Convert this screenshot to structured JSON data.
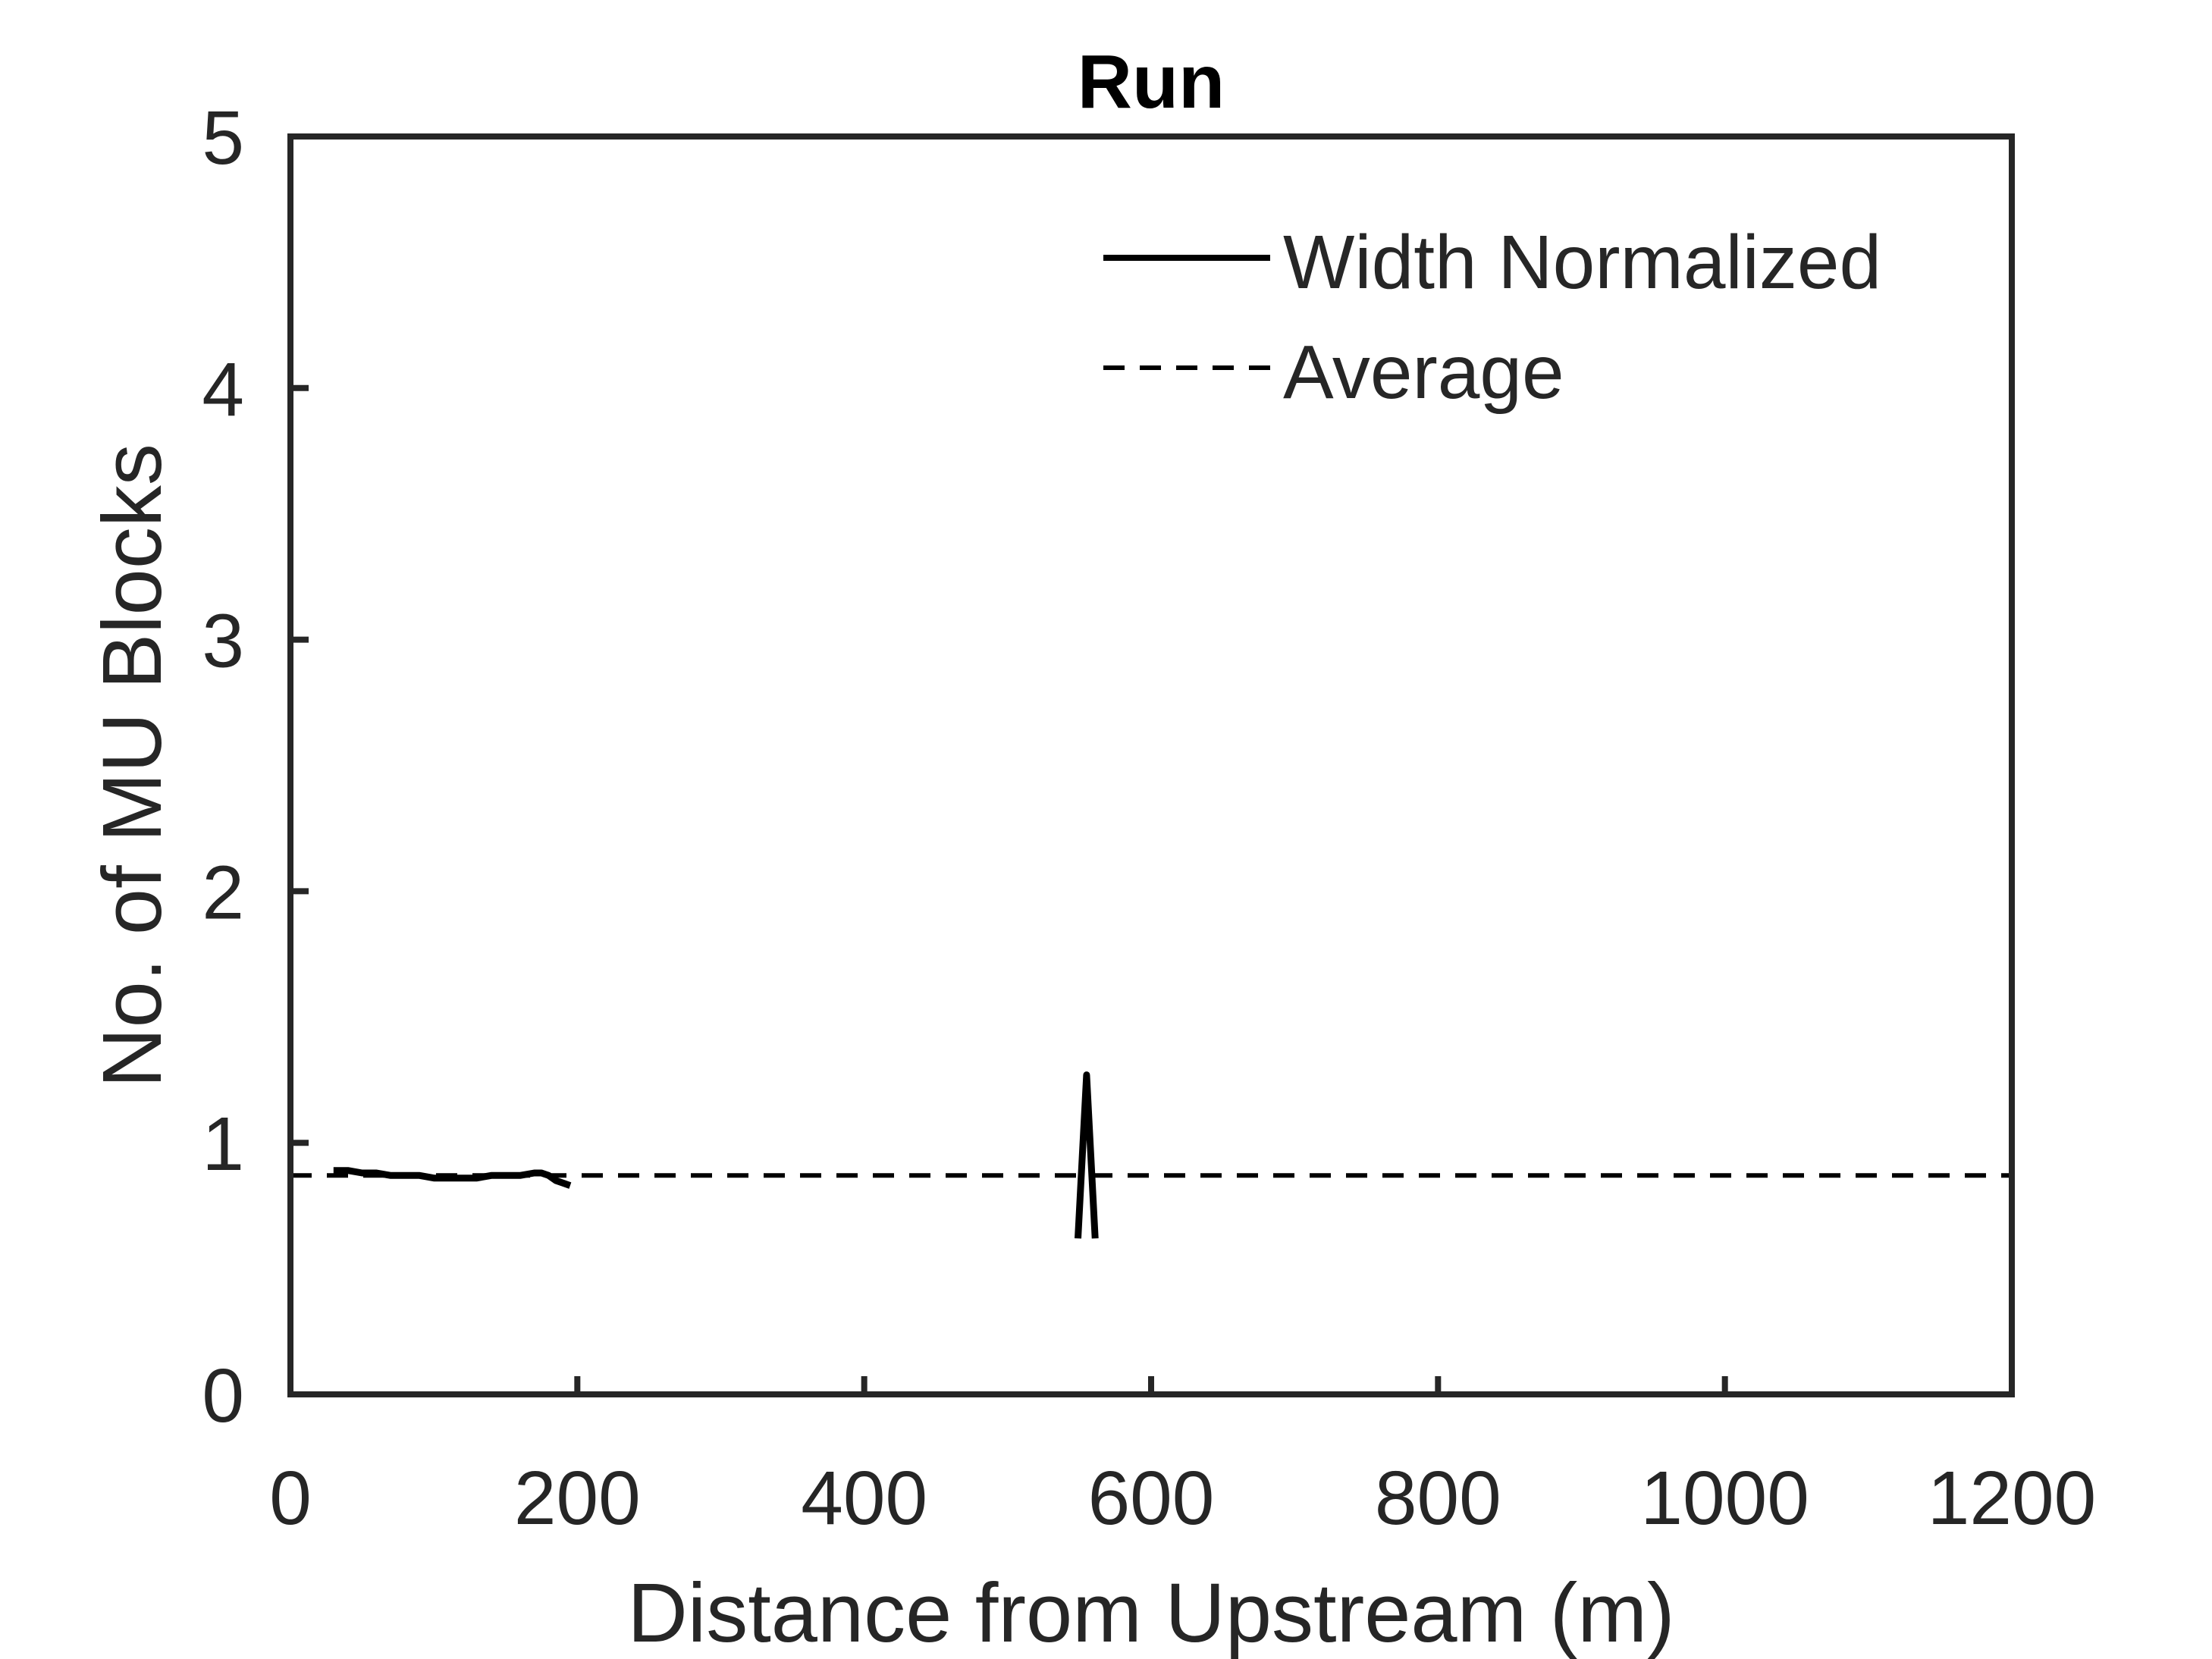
{
  "chart_data": {
    "type": "line",
    "title": "Run",
    "xlabel": "Distance from Upstream (m)",
    "ylabel": "No. of MU Blocks",
    "xlim": [
      0,
      1200
    ],
    "ylim": [
      0,
      5
    ],
    "xticks": [
      0,
      200,
      400,
      600,
      800,
      1000,
      1200
    ],
    "yticks": [
      0,
      1,
      2,
      3,
      4,
      5
    ],
    "grid": false,
    "legend_position": "top-right",
    "series": [
      {
        "name": "Width Normalized",
        "style": "solid",
        "color": "#000000",
        "segments": [
          {
            "x": [
              30,
              40,
              50,
              60,
              70,
              80,
              90,
              100,
              110,
              120,
              130,
              140,
              150,
              160,
              170,
              175,
              180,
              185,
              190,
              195
            ],
            "y": [
              0.89,
              0.89,
              0.88,
              0.88,
              0.87,
              0.87,
              0.87,
              0.86,
              0.86,
              0.86,
              0.86,
              0.87,
              0.87,
              0.87,
              0.88,
              0.88,
              0.87,
              0.85,
              0.84,
              0.83
            ]
          },
          {
            "x": [
              549,
              555,
              561
            ],
            "y": [
              0.62,
              1.27,
              0.62
            ]
          }
        ]
      },
      {
        "name": "Average",
        "style": "dashed",
        "color": "#000000",
        "segments": [
          {
            "x": [
              0,
              1200
            ],
            "y": [
              0.87,
              0.87
            ]
          }
        ]
      }
    ]
  }
}
